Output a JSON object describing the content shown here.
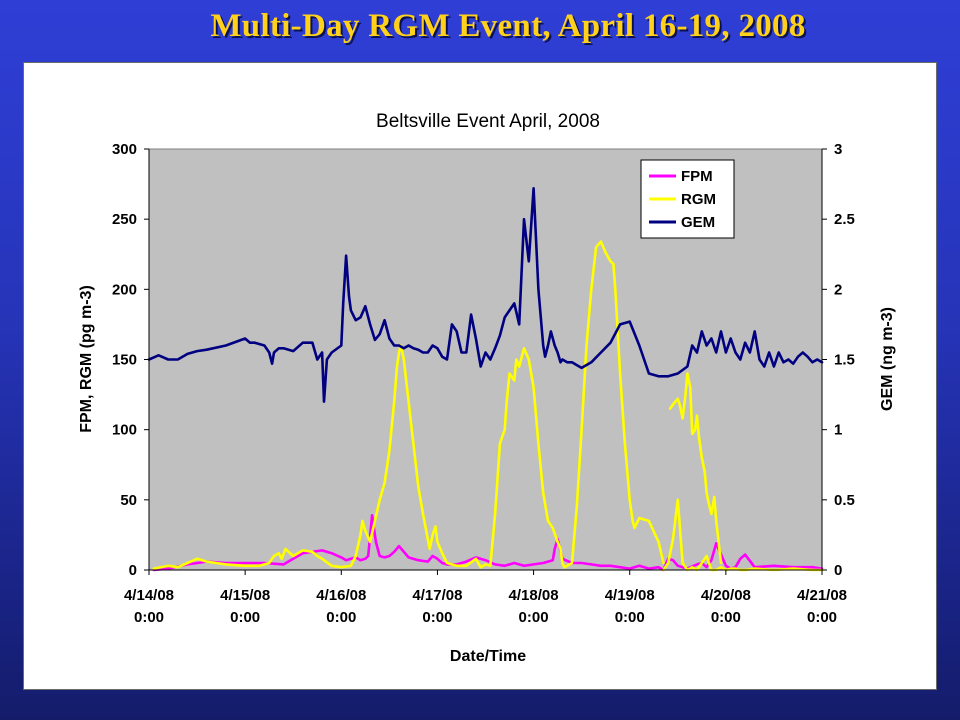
{
  "slide": {
    "title": "Multi-Day RGM Event, April 16-19, 2008"
  },
  "colors": {
    "plot_background": "#c0c0c0",
    "FPM": "#ff00ff",
    "RGM": "#ffff00",
    "GEM": "#000080"
  },
  "chart_data": {
    "type": "line",
    "title": "Beltsville Event April, 2008",
    "xlabel": "Date/Time",
    "ylabel": "FPM, RGM (pg m-3)",
    "y2label": "GEM (ng m-3)",
    "xlim": [
      0,
      7
    ],
    "ylim": [
      0,
      300
    ],
    "y2lim": [
      0,
      3
    ],
    "x_ticks": [
      0,
      1,
      2,
      3,
      4,
      5,
      6,
      7
    ],
    "x_tick_labels": [
      [
        "4/14/08",
        "0:00"
      ],
      [
        "4/15/08",
        "0:00"
      ],
      [
        "4/16/08",
        "0:00"
      ],
      [
        "4/17/08",
        "0:00"
      ],
      [
        "4/18/08",
        "0:00"
      ],
      [
        "4/19/08",
        "0:00"
      ],
      [
        "4/20/08",
        "0:00"
      ],
      [
        "4/21/08",
        "0:00"
      ]
    ],
    "y_ticks": [
      0,
      50,
      100,
      150,
      200,
      250,
      300
    ],
    "y2_ticks": [
      0,
      0.5,
      1,
      1.5,
      2,
      2.5,
      3
    ],
    "y2_tick_labels": [
      "0",
      "0.5",
      "1",
      "1.5",
      "2",
      "2.5",
      "3"
    ],
    "grid": false,
    "legend_position": "top-right",
    "series": [
      {
        "name": "FPM",
        "axis": "left",
        "color": "#ff00ff",
        "x": [
          0.05,
          0.2,
          0.4,
          0.6,
          0.8,
          1.0,
          1.2,
          1.4,
          1.5,
          1.6,
          1.8,
          1.9,
          2.0,
          2.05,
          2.1,
          2.15,
          2.2,
          2.25,
          2.28,
          2.32,
          2.36,
          2.4,
          2.45,
          2.5,
          2.55,
          2.6,
          2.7,
          2.8,
          2.9,
          2.95,
          3.0,
          3.05,
          3.1,
          3.2,
          3.3,
          3.4,
          3.5,
          3.6,
          3.7,
          3.8,
          3.9,
          4.0,
          4.1,
          4.2,
          4.22,
          4.25,
          4.3,
          4.4,
          4.5,
          4.6,
          4.7,
          4.8,
          4.9,
          5.0,
          5.1,
          5.2,
          5.3,
          5.35,
          5.4,
          5.45,
          5.5,
          5.6,
          5.7,
          5.75,
          5.8,
          5.85,
          5.9,
          6.0,
          6.05,
          6.1,
          6.15,
          6.2,
          6.3,
          6.5,
          6.7,
          6.9,
          7.0
        ],
        "y": [
          0,
          1,
          4,
          6,
          5,
          5,
          5,
          4,
          8,
          12,
          14,
          12,
          9,
          7,
          8,
          9,
          7,
          8,
          10,
          39,
          20,
          10,
          9,
          10,
          13,
          17,
          9,
          7,
          6,
          10,
          8,
          5,
          4,
          4,
          6,
          9,
          7,
          4,
          3,
          5,
          3,
          4,
          5,
          7,
          15,
          22,
          8,
          5,
          5,
          4,
          3,
          3,
          2,
          1,
          3,
          1,
          2,
          0,
          8,
          7,
          3,
          1,
          4,
          5,
          2,
          7,
          19,
          3,
          1,
          2,
          8,
          11,
          2,
          3,
          2,
          2,
          1
        ]
      },
      {
        "name": "RGM",
        "axis": "left",
        "color": "#ffff00",
        "x": [
          0.05,
          0.2,
          0.3,
          0.4,
          0.5,
          0.6,
          0.8,
          1.0,
          1.15,
          1.25,
          1.3,
          1.35,
          1.38,
          1.42,
          1.5,
          1.6,
          1.7,
          1.75,
          1.8,
          1.9,
          2.0,
          2.1,
          2.15,
          2.2,
          2.22,
          2.25,
          2.3,
          2.35,
          2.4,
          2.45,
          2.5,
          2.55,
          2.58,
          2.6,
          2.62,
          2.65,
          2.7,
          2.75,
          2.8,
          2.85,
          2.9,
          2.92,
          2.95,
          2.98,
          3.0,
          3.05,
          3.1,
          3.2,
          3.3,
          3.4,
          3.45,
          3.5,
          3.55,
          3.58,
          3.6,
          3.63,
          3.65,
          3.7,
          3.72,
          3.75,
          3.8,
          3.82,
          3.85,
          3.9,
          3.95,
          4.0,
          4.05,
          4.1,
          4.15,
          4.2,
          4.25,
          4.28,
          4.3,
          4.32,
          4.35,
          4.4,
          4.45,
          4.5,
          4.55,
          4.6,
          4.65,
          4.7,
          4.75,
          4.8,
          4.83,
          4.85,
          4.9,
          4.95,
          5.0,
          5.03,
          5.05,
          5.1,
          5.2,
          5.3,
          5.35
        ],
        "y": [
          1,
          3,
          2,
          5,
          8,
          6,
          4,
          3,
          3,
          5,
          10,
          12,
          8,
          15,
          10,
          14,
          13,
          10,
          8,
          3,
          2,
          3,
          10,
          25,
          35,
          28,
          20,
          35,
          50,
          62,
          85,
          120,
          145,
          155,
          160,
          150,
          120,
          90,
          60,
          40,
          22,
          15,
          25,
          31,
          20,
          12,
          5,
          3,
          3,
          8,
          2,
          4,
          3,
          25,
          40,
          70,
          90,
          100,
          120,
          140,
          135,
          150,
          145,
          158,
          150,
          130,
          90,
          55,
          35,
          30,
          20,
          15,
          5,
          2,
          3,
          5,
          45,
          100,
          160,
          200,
          230,
          234,
          226,
          220,
          218,
          200,
          140,
          90,
          50,
          35,
          30,
          37,
          35,
          20,
          5
        ]
      },
      {
        "name": "RGM",
        "axis": "left",
        "color": "#ffff00",
        "x": [
          5.35,
          5.4,
          5.45,
          5.5,
          5.55,
          5.6,
          5.65,
          5.7,
          5.75,
          5.8,
          5.85,
          5.9,
          5.95,
          6.0,
          6.05,
          6.1,
          6.15,
          6.2,
          6.3,
          6.5,
          6.7,
          6.9,
          7.0
        ],
        "y": [
          0,
          5,
          22,
          50,
          5,
          0,
          2,
          0,
          5,
          10,
          0,
          0,
          2,
          0,
          1,
          1,
          0,
          0,
          1,
          0,
          1,
          0,
          0
        ]
      },
      {
        "name": "RGM",
        "axis": "left",
        "color": "#ffff00",
        "x": [
          5.42,
          5.45,
          5.5,
          5.52,
          5.55,
          5.58,
          5.6,
          5.63,
          5.65,
          5.68,
          5.7,
          5.72,
          5.75,
          5.78,
          5.8,
          5.82,
          5.85,
          5.88,
          5.9,
          5.95
        ],
        "y": [
          115,
          118,
          122,
          118,
          108,
          125,
          140,
          130,
          97,
          100,
          110,
          95,
          80,
          70,
          55,
          48,
          40,
          52,
          35,
          5
        ]
      },
      {
        "name": "GEM",
        "axis": "right",
        "color": "#000080",
        "x": [
          0.0,
          0.1,
          0.2,
          0.3,
          0.4,
          0.5,
          0.6,
          0.8,
          1.0,
          1.05,
          1.1,
          1.2,
          1.25,
          1.28,
          1.3,
          1.35,
          1.4,
          1.5,
          1.6,
          1.7,
          1.75,
          1.8,
          1.82,
          1.85,
          1.9,
          2.0,
          2.02,
          2.05,
          2.08,
          2.1,
          2.15,
          2.2,
          2.25,
          2.3,
          2.35,
          2.4,
          2.45,
          2.5,
          2.55,
          2.6,
          2.65,
          2.7,
          2.75,
          2.8,
          2.85,
          2.9,
          2.95,
          3.0,
          3.05,
          3.1,
          3.15,
          3.2,
          3.25,
          3.3,
          3.35,
          3.4,
          3.45,
          3.5,
          3.55,
          3.6,
          3.65,
          3.7,
          3.75,
          3.8,
          3.85,
          3.9,
          3.95,
          4.0,
          4.05,
          4.1,
          4.12,
          4.15,
          4.18,
          4.2,
          4.22,
          4.25,
          4.28,
          4.3,
          4.35,
          4.4,
          4.45,
          4.5,
          4.6,
          4.7,
          4.8,
          4.9,
          5.0,
          5.1,
          5.2,
          5.3,
          5.4,
          5.5,
          5.6,
          5.65,
          5.7,
          5.75,
          5.8,
          5.85,
          5.9,
          5.95,
          6.0,
          6.05,
          6.1,
          6.15,
          6.2,
          6.25,
          6.3,
          6.35,
          6.4,
          6.45,
          6.5,
          6.55,
          6.6,
          6.65,
          6.7,
          6.75,
          6.8,
          6.85,
          6.9,
          6.95,
          7.0
        ],
        "y": [
          1.5,
          1.53,
          1.5,
          1.5,
          1.54,
          1.56,
          1.57,
          1.6,
          1.65,
          1.62,
          1.62,
          1.6,
          1.55,
          1.47,
          1.55,
          1.58,
          1.58,
          1.56,
          1.62,
          1.62,
          1.5,
          1.55,
          1.2,
          1.5,
          1.55,
          1.6,
          1.9,
          2.24,
          1.95,
          1.85,
          1.78,
          1.8,
          1.88,
          1.75,
          1.64,
          1.68,
          1.78,
          1.65,
          1.6,
          1.6,
          1.58,
          1.6,
          1.58,
          1.57,
          1.55,
          1.55,
          1.6,
          1.58,
          1.52,
          1.5,
          1.75,
          1.7,
          1.55,
          1.55,
          1.82,
          1.65,
          1.45,
          1.55,
          1.5,
          1.58,
          1.67,
          1.8,
          1.85,
          1.9,
          1.75,
          2.5,
          2.2,
          2.72,
          2.0,
          1.6,
          1.52,
          1.6,
          1.7,
          1.65,
          1.6,
          1.55,
          1.48,
          1.5,
          1.48,
          1.48,
          1.46,
          1.44,
          1.48,
          1.55,
          1.62,
          1.75,
          1.77,
          1.6,
          1.4,
          1.38,
          1.38,
          1.4,
          1.45,
          1.6,
          1.55,
          1.7,
          1.6,
          1.65,
          1.55,
          1.7,
          1.55,
          1.65,
          1.55,
          1.5,
          1.62,
          1.55,
          1.7,
          1.5,
          1.45,
          1.55,
          1.45,
          1.55,
          1.48,
          1.5,
          1.47,
          1.52,
          1.55,
          1.52,
          1.48,
          1.5,
          1.48
        ]
      }
    ]
  }
}
